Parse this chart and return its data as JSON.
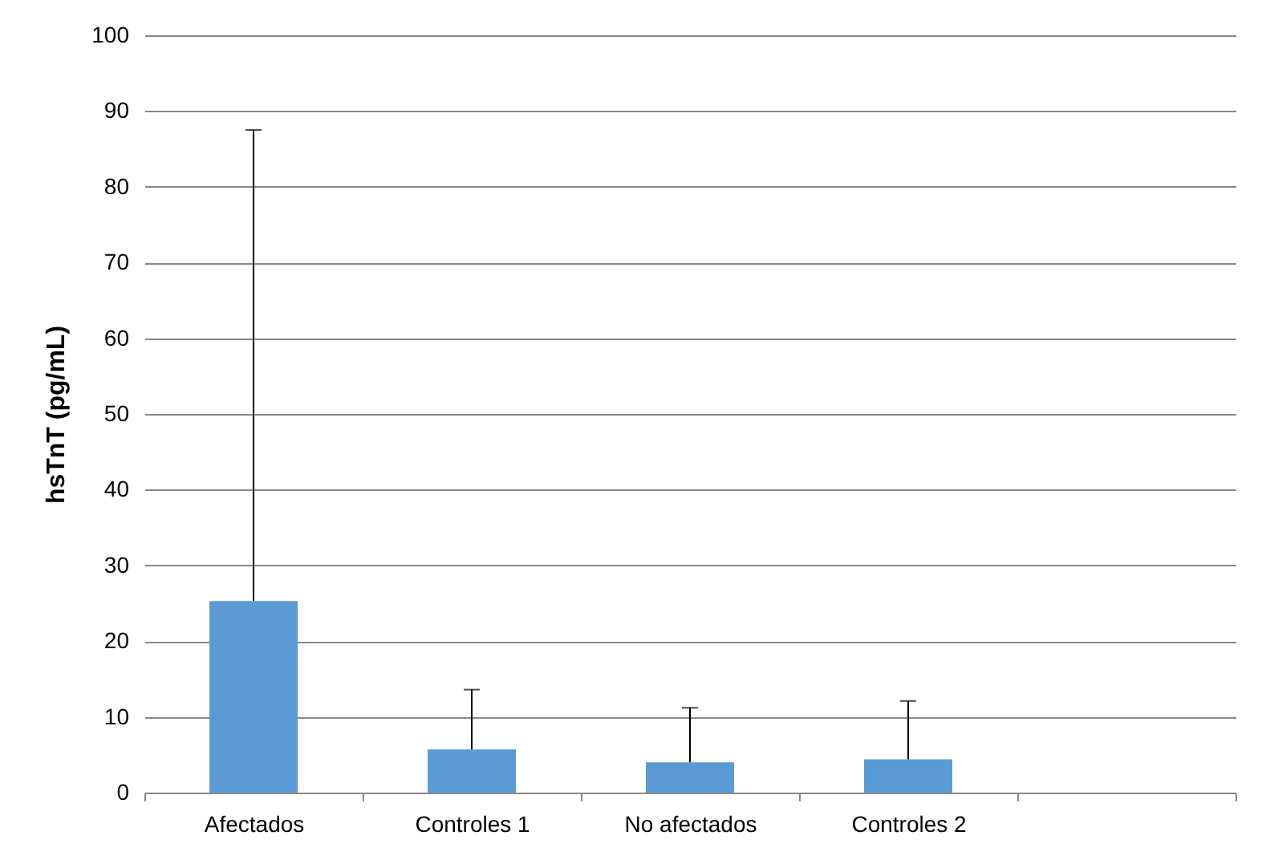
{
  "chart_data": {
    "type": "bar",
    "ylabel": "hsTnT (pg/mL)",
    "categories": [
      "Afectados",
      "Controles 1",
      "No afectados",
      "Controles 2",
      null
    ],
    "values": [
      25.3,
      5.7,
      4.0,
      4.4,
      null
    ],
    "errors": [
      [
        25.3,
        87.5
      ],
      [
        5.7,
        13.6
      ],
      [
        4.0,
        11.2
      ],
      [
        4.4,
        12.1
      ],
      null
    ],
    "color": "#5b9bd5",
    "ylim": [
      0,
      100
    ],
    "yticks": [
      0,
      10,
      20,
      30,
      40,
      50,
      60,
      70,
      80,
      90,
      100
    ],
    "grid": "y"
  }
}
